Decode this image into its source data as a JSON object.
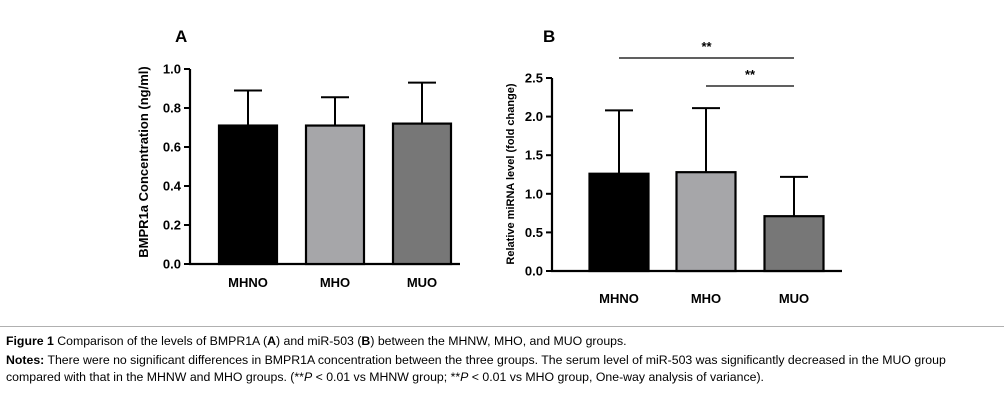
{
  "chart_data": [
    {
      "panel": "A",
      "type": "bar",
      "categories": [
        "MHNO",
        "MHO",
        "MUO"
      ],
      "values": [
        0.71,
        0.71,
        0.72
      ],
      "error_upper": [
        0.89,
        0.855,
        0.93
      ],
      "colors": [
        "#000000",
        "#a6a6a9",
        "#777777"
      ],
      "ylabel": "BMPR1a Concentration (ng/ml)",
      "xlabel": "",
      "ylim": [
        0,
        1.0
      ],
      "yticks": [
        "0.0",
        "0.2",
        "0.4",
        "0.6",
        "0.8",
        "1.0"
      ],
      "significance": []
    },
    {
      "panel": "B",
      "type": "bar",
      "categories": [
        "MHNO",
        "MHO",
        "MUO"
      ],
      "values": [
        1.26,
        1.28,
        0.71
      ],
      "error_upper": [
        2.08,
        2.11,
        1.22
      ],
      "colors": [
        "#000000",
        "#a6a6a9",
        "#777777"
      ],
      "ylabel": "Relative miRNA level (fold change)",
      "xlabel": "",
      "ylim": [
        0,
        2.5
      ],
      "yticks": [
        "0.0",
        "0.5",
        "1.0",
        "1.5",
        "2.0",
        "2.5"
      ],
      "significance": [
        {
          "from": 0,
          "to": 2,
          "label": "**"
        },
        {
          "from": 1,
          "to": 2,
          "label": "**"
        }
      ]
    }
  ],
  "caption": {
    "figure_label": "Figure 1",
    "figure_text_1": " Comparison of the levels of BMPR1A (",
    "figure_A": "A",
    "figure_text_2": ") and miR-503 (",
    "figure_B": "B",
    "figure_text_3": ") between the MHNW, MHO, and MUO groups.",
    "notes_label": "Notes:",
    "notes_text_1": " There were no significant differences in BMPR1A concentration between the three groups. The serum level of miR-503 was significantly decreased in the MUO group compared with that in the MHNW and MHO groups. (**",
    "p1": "P",
    "notes_text_2": " < 0.01 vs MHNW group; **",
    "p2": "P",
    "notes_text_3": " < 0.01 vs MHO group, One-way analysis of variance)."
  }
}
